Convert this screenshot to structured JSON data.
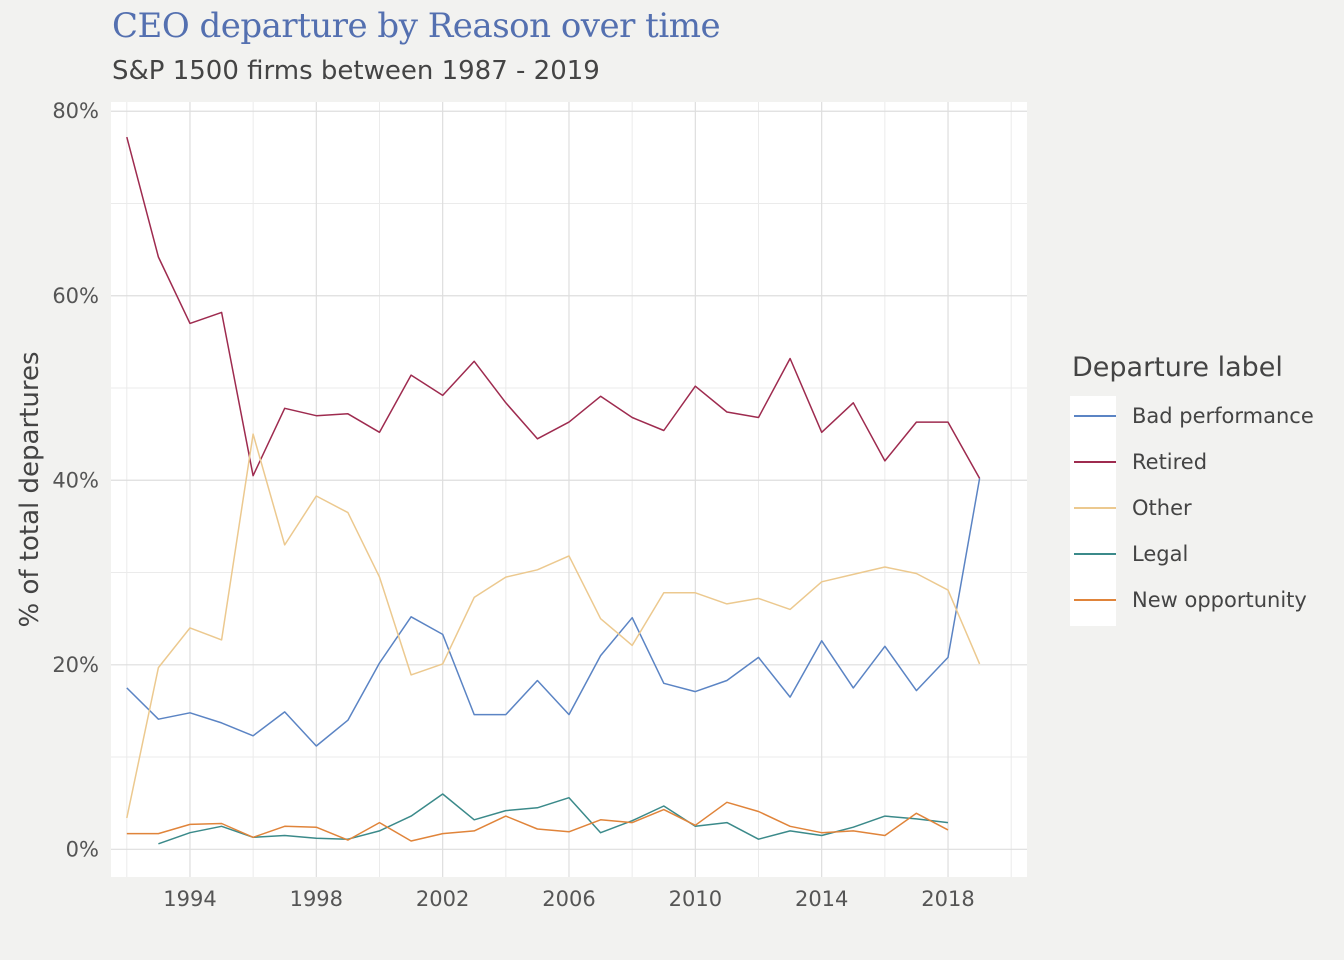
{
  "title": "CEO departure by Reason over time",
  "subtitle": "S&P 1500 firms between 1987 - 2019",
  "chart_data": {
    "type": "line",
    "ylabel": "% of total departures",
    "xlabel": "",
    "xlim": [
      1991.5,
      2020.5
    ],
    "ylim": [
      -3,
      81
    ],
    "x_ticks": [
      1994,
      1998,
      2002,
      2006,
      2010,
      2014,
      2018
    ],
    "x_tick_labels": [
      "1994",
      "1998",
      "2002",
      "2006",
      "2010",
      "2014",
      "2018"
    ],
    "y_ticks": [
      0,
      20,
      40,
      60,
      80
    ],
    "y_tick_labels": [
      "0%",
      "20%",
      "40%",
      "60%",
      "80%"
    ],
    "grid": true,
    "legend": {
      "title": "Departure label",
      "position": "right"
    },
    "series": [
      {
        "name": "Bad performance",
        "color": "#5b84c4",
        "points": [
          [
            1992,
            17.5
          ],
          [
            1993,
            14.1
          ],
          [
            1994,
            14.8
          ],
          [
            1995,
            13.7
          ],
          [
            1996,
            12.3
          ],
          [
            1997,
            14.9
          ],
          [
            1998,
            11.2
          ],
          [
            1999,
            14.0
          ],
          [
            2000,
            20.2
          ],
          [
            2001,
            25.2
          ],
          [
            2002,
            23.3
          ],
          [
            2003,
            14.6
          ],
          [
            2004,
            14.6
          ],
          [
            2005,
            18.3
          ],
          [
            2006,
            14.6
          ],
          [
            2007,
            21.0
          ],
          [
            2008,
            25.1
          ],
          [
            2009,
            18.0
          ],
          [
            2010,
            17.1
          ],
          [
            2011,
            18.3
          ],
          [
            2012,
            20.8
          ],
          [
            2013,
            16.5
          ],
          [
            2014,
            22.6
          ],
          [
            2015,
            17.5
          ],
          [
            2016,
            22.0
          ],
          [
            2017,
            17.2
          ],
          [
            2018,
            20.8
          ],
          [
            2019,
            40.2
          ]
        ]
      },
      {
        "name": "Retired",
        "color": "#9e2b4f",
        "points": [
          [
            1992,
            77.2
          ],
          [
            1993,
            64.2
          ],
          [
            1994,
            57.0
          ],
          [
            1995,
            58.2
          ],
          [
            1996,
            40.5
          ],
          [
            1997,
            47.8
          ],
          [
            1998,
            47.0
          ],
          [
            1999,
            47.2
          ],
          [
            2000,
            45.2
          ],
          [
            2001,
            51.4
          ],
          [
            2002,
            49.2
          ],
          [
            2003,
            52.9
          ],
          [
            2004,
            48.4
          ],
          [
            2005,
            44.5
          ],
          [
            2006,
            46.3
          ],
          [
            2007,
            49.1
          ],
          [
            2008,
            46.8
          ],
          [
            2009,
            45.4
          ],
          [
            2010,
            50.2
          ],
          [
            2011,
            47.4
          ],
          [
            2012,
            46.8
          ],
          [
            2013,
            53.2
          ],
          [
            2014,
            45.2
          ],
          [
            2015,
            48.4
          ],
          [
            2016,
            42.1
          ],
          [
            2017,
            46.3
          ],
          [
            2018,
            46.3
          ],
          [
            2019,
            40.2
          ]
        ]
      },
      {
        "name": "Other",
        "color": "#ecc98f",
        "points": [
          [
            1992,
            3.4
          ],
          [
            1993,
            19.7
          ],
          [
            1994,
            24.0
          ],
          [
            1995,
            22.7
          ],
          [
            1996,
            45.0
          ],
          [
            1997,
            33.0
          ],
          [
            1998,
            38.3
          ],
          [
            1999,
            36.5
          ],
          [
            2000,
            29.5
          ],
          [
            2001,
            18.9
          ],
          [
            2002,
            20.1
          ],
          [
            2003,
            27.3
          ],
          [
            2004,
            29.5
          ],
          [
            2005,
            30.3
          ],
          [
            2006,
            31.8
          ],
          [
            2007,
            25.0
          ],
          [
            2008,
            22.1
          ],
          [
            2009,
            27.8
          ],
          [
            2010,
            27.8
          ],
          [
            2011,
            26.6
          ],
          [
            2012,
            27.2
          ],
          [
            2013,
            26.0
          ],
          [
            2014,
            29.0
          ],
          [
            2015,
            29.8
          ],
          [
            2016,
            30.6
          ],
          [
            2017,
            29.9
          ],
          [
            2018,
            28.1
          ],
          [
            2019,
            20.1
          ]
        ]
      },
      {
        "name": "Legal",
        "color": "#3b8a8a",
        "points": [
          [
            1993,
            0.6
          ],
          [
            1994,
            1.8
          ],
          [
            1995,
            2.5
          ],
          [
            1996,
            1.3
          ],
          [
            1997,
            1.5
          ],
          [
            1998,
            1.2
          ],
          [
            1999,
            1.1
          ],
          [
            2000,
            2.0
          ],
          [
            2001,
            3.6
          ],
          [
            2002,
            6.0
          ],
          [
            2003,
            3.2
          ],
          [
            2004,
            4.2
          ],
          [
            2005,
            4.5
          ],
          [
            2006,
            5.6
          ],
          [
            2007,
            1.8
          ],
          [
            2008,
            3.1
          ],
          [
            2009,
            4.7
          ],
          [
            2010,
            2.5
          ],
          [
            2011,
            2.9
          ],
          [
            2012,
            1.1
          ],
          [
            2013,
            2.0
          ],
          [
            2014,
            1.5
          ],
          [
            2015,
            2.4
          ],
          [
            2016,
            3.6
          ],
          [
            2017,
            3.3
          ],
          [
            2018,
            2.9
          ]
        ]
      },
      {
        "name": "New opportunity",
        "color": "#e0843a",
        "points": [
          [
            1992,
            1.7
          ],
          [
            1993,
            1.7
          ],
          [
            1994,
            2.7
          ],
          [
            1995,
            2.8
          ],
          [
            1996,
            1.3
          ],
          [
            1997,
            2.5
          ],
          [
            1998,
            2.4
          ],
          [
            1999,
            1.0
          ],
          [
            2000,
            2.9
          ],
          [
            2001,
            0.9
          ],
          [
            2002,
            1.7
          ],
          [
            2003,
            2.0
          ],
          [
            2004,
            3.6
          ],
          [
            2005,
            2.2
          ],
          [
            2006,
            1.9
          ],
          [
            2007,
            3.2
          ],
          [
            2008,
            2.9
          ],
          [
            2009,
            4.3
          ],
          [
            2010,
            2.6
          ],
          [
            2011,
            5.1
          ],
          [
            2012,
            4.1
          ],
          [
            2013,
            2.5
          ],
          [
            2014,
            1.8
          ],
          [
            2015,
            2.0
          ],
          [
            2016,
            1.5
          ],
          [
            2017,
            3.9
          ],
          [
            2018,
            2.1
          ]
        ]
      }
    ]
  }
}
